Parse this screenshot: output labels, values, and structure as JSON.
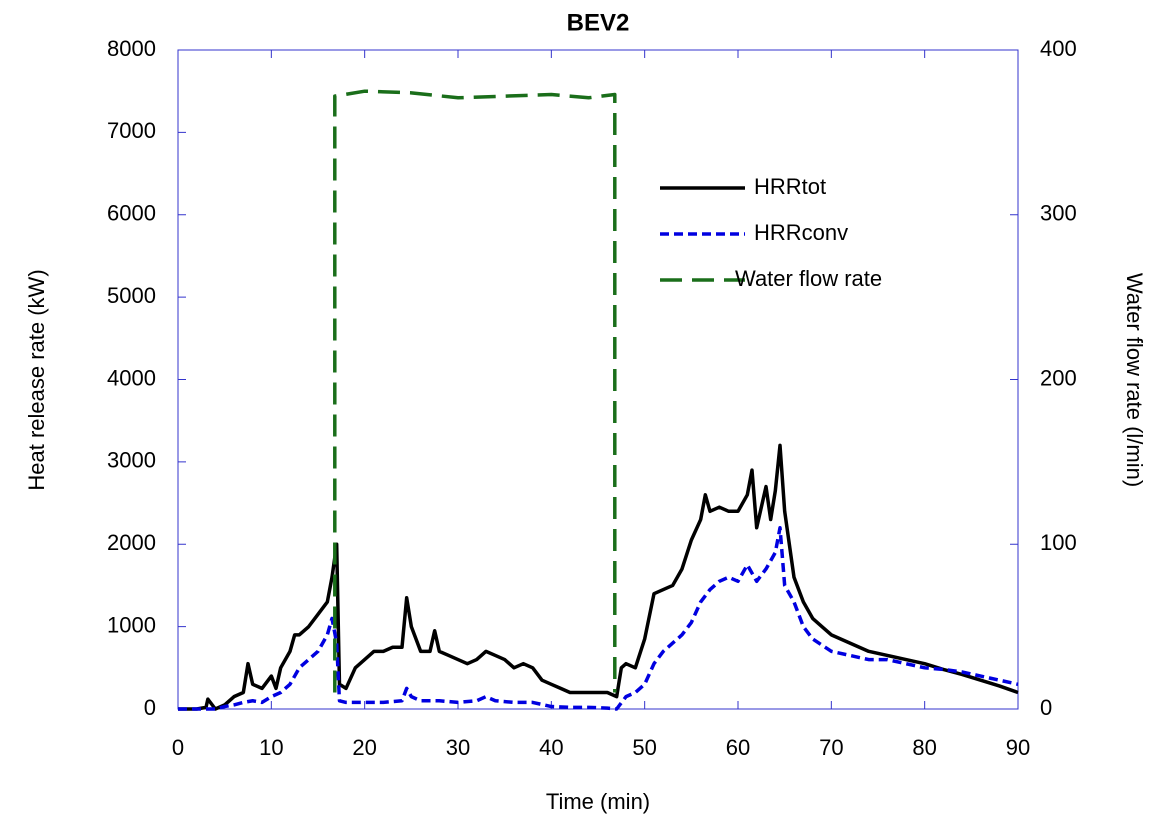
{
  "chart_data": {
    "type": "line",
    "title": "BEV2",
    "x_label": "Time (min)",
    "y_label": "Heat release rate (kW)",
    "y2_label": "Water flow rate (l/min)",
    "xlim": [
      0,
      90
    ],
    "xticks": [
      0,
      10,
      20,
      30,
      40,
      50,
      60,
      70,
      80,
      90
    ],
    "ylim": [
      0,
      8000
    ],
    "yticks": [
      0,
      1000,
      2000,
      3000,
      4000,
      5000,
      6000,
      7000,
      8000
    ],
    "y2lim": [
      0,
      400
    ],
    "y2ticks": [
      0,
      100,
      200,
      300,
      400
    ],
    "grid": false,
    "legend": "upper right",
    "series": [
      {
        "name": "HRRtot",
        "color": "#000000",
        "dash": "solid",
        "x": [
          0,
          2,
          3,
          3.2,
          4,
          5,
          6,
          7,
          7.5,
          8,
          9,
          10,
          10.5,
          11,
          12,
          12.5,
          13,
          14,
          15,
          16,
          16.5,
          17,
          17.3,
          18,
          19,
          20,
          21,
          22,
          23,
          24,
          24.5,
          25,
          26,
          27,
          27.5,
          28,
          29,
          30,
          31,
          32,
          33,
          34,
          35,
          36,
          37,
          38,
          39,
          40,
          41,
          42,
          43,
          44,
          45,
          46,
          47,
          47.5,
          48,
          49,
          50,
          51,
          52,
          53,
          54,
          55,
          56,
          56.5,
          57,
          58,
          59,
          60,
          61,
          61.5,
          62,
          63,
          63.5,
          64,
          64.5,
          65,
          66,
          67,
          68,
          69,
          70,
          72,
          74,
          76,
          78,
          80,
          82,
          84,
          86,
          88,
          90
        ],
        "values": [
          0,
          0,
          20,
          120,
          0,
          50,
          150,
          200,
          550,
          300,
          250,
          400,
          250,
          500,
          700,
          900,
          900,
          1000,
          1150,
          1300,
          1600,
          2000,
          300,
          250,
          500,
          600,
          700,
          700,
          750,
          750,
          1350,
          1000,
          700,
          700,
          950,
          700,
          650,
          600,
          550,
          600,
          700,
          650,
          600,
          500,
          550,
          500,
          350,
          300,
          250,
          200,
          200,
          200,
          200,
          200,
          150,
          500,
          550,
          500,
          850,
          1400,
          1450,
          1500,
          1700,
          2050,
          2300,
          2600,
          2400,
          2450,
          2400,
          2400,
          2600,
          2900,
          2200,
          2700,
          2300,
          2650,
          3200,
          2400,
          1600,
          1300,
          1100,
          1000,
          900,
          800,
          700,
          650,
          600,
          550,
          480,
          420,
          350,
          280,
          200
        ]
      },
      {
        "name": "HRRconv",
        "color": "#0000e0",
        "dash": "short",
        "x": [
          0,
          4,
          5,
          6,
          7,
          8,
          9,
          10,
          11,
          12,
          13,
          14,
          15,
          16,
          16.5,
          17,
          17.3,
          18,
          20,
          22,
          24,
          24.5,
          25,
          26,
          28,
          30,
          32,
          33,
          34,
          36,
          38,
          40,
          42,
          44,
          46,
          47,
          48,
          49,
          50,
          51,
          52,
          53,
          54,
          55,
          56,
          57,
          58,
          59,
          60,
          61,
          62,
          63,
          64,
          64.5,
          65,
          66,
          67,
          68,
          70,
          72,
          74,
          76,
          78,
          80,
          82,
          84,
          86,
          88,
          90
        ],
        "values": [
          0,
          0,
          30,
          50,
          80,
          100,
          80,
          150,
          200,
          300,
          500,
          600,
          700,
          900,
          1100,
          800,
          100,
          80,
          80,
          80,
          100,
          250,
          150,
          100,
          100,
          80,
          100,
          150,
          100,
          80,
          80,
          30,
          20,
          20,
          10,
          0,
          150,
          200,
          300,
          550,
          700,
          800,
          900,
          1050,
          1300,
          1450,
          1550,
          1600,
          1550,
          1750,
          1550,
          1700,
          1900,
          2200,
          1500,
          1300,
          1000,
          850,
          700,
          650,
          600,
          600,
          550,
          500,
          480,
          450,
          400,
          350,
          300
        ]
      },
      {
        "name": "Water flow rate",
        "color": "#1a6e1a",
        "dash": "long",
        "axis": "y2",
        "x": [
          16.8,
          16.8,
          20,
          25,
          30,
          35,
          40,
          44,
          46.8,
          46.8
        ],
        "values": [
          10,
          372,
          375,
          374,
          371,
          372,
          373,
          371,
          373,
          10
        ]
      }
    ]
  }
}
